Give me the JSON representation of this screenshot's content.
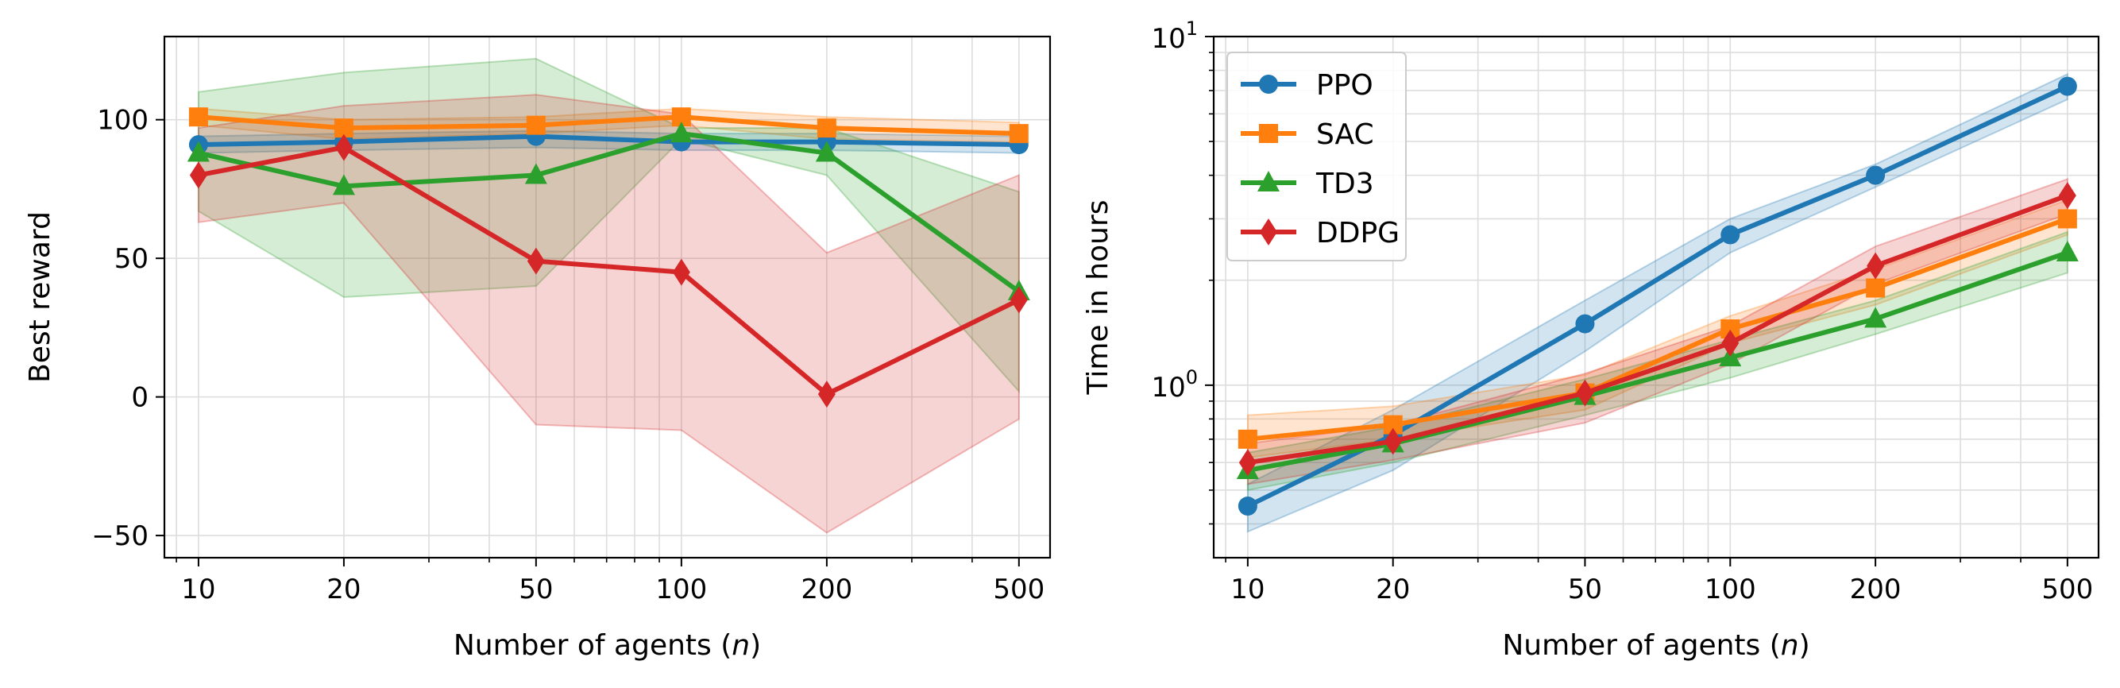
{
  "chart_data": [
    {
      "type": "line",
      "xscale": "log",
      "yscale": "linear",
      "x": [
        10,
        20,
        50,
        100,
        200,
        500
      ],
      "xlim": [
        8.5,
        580
      ],
      "ylim": [
        -58,
        130
      ],
      "xticks": [
        10,
        20,
        50,
        100,
        200,
        500
      ],
      "xtick_labels": [
        "10",
        "20",
        "50",
        "100",
        "200",
        "500"
      ],
      "yticks": [
        -50,
        0,
        50,
        100
      ],
      "ytick_labels": [
        "−50",
        "0",
        "50",
        "100"
      ],
      "xlabel_text": "Number of agents (",
      "xlabel_var": "n",
      "xlabel_close": ")",
      "ylabel": "Best reward",
      "grid": true,
      "series": [
        {
          "name": "PPO",
          "color": "#1f77b4",
          "marker": "circle",
          "values": [
            91,
            92,
            94,
            92,
            92,
            91
          ],
          "lower": [
            88,
            89,
            90,
            89,
            89,
            88
          ],
          "upper": [
            94,
            95,
            96,
            95,
            95,
            94
          ]
        },
        {
          "name": "SAC",
          "color": "#ff7f0e",
          "marker": "square",
          "values": [
            101,
            97,
            98,
            101,
            97,
            95
          ],
          "lower": [
            98,
            93,
            95,
            98,
            93,
            92
          ],
          "upper": [
            104,
            100,
            101,
            104,
            101,
            99
          ]
        },
        {
          "name": "TD3",
          "color": "#2ca02c",
          "marker": "triangle",
          "values": [
            88,
            76,
            80,
            95,
            88,
            38
          ],
          "lower": [
            67,
            36,
            40,
            93,
            80,
            2
          ],
          "upper": [
            110,
            117,
            122,
            97,
            97,
            74
          ]
        },
        {
          "name": "DDPG",
          "color": "#d62728",
          "marker": "diamond",
          "values": [
            80,
            90,
            49,
            45,
            1,
            35
          ],
          "lower": [
            63,
            70,
            -10,
            -12,
            -49,
            -8
          ],
          "upper": [
            97,
            105,
            109,
            102,
            52,
            80
          ]
        }
      ]
    },
    {
      "type": "line",
      "xscale": "log",
      "yscale": "log",
      "x": [
        10,
        20,
        50,
        100,
        200,
        500
      ],
      "xlim": [
        8.5,
        580
      ],
      "ylim": [
        0.32,
        10
      ],
      "xticks": [
        10,
        20,
        50,
        100,
        200,
        500
      ],
      "xtick_labels": [
        "10",
        "20",
        "50",
        "100",
        "200",
        "500"
      ],
      "ytick_values": [
        1,
        10
      ],
      "ytick_base": "10",
      "ytick_exponents": [
        "0",
        "1"
      ],
      "xlabel_text": "Number of agents (",
      "xlabel_var": "n",
      "xlabel_close": ")",
      "ylabel": "Time in hours",
      "grid": true,
      "legend_location": "top-left",
      "series": [
        {
          "name": "PPO",
          "color": "#1f77b4",
          "marker": "circle",
          "values": [
            0.45,
            0.72,
            1.5,
            2.7,
            4.0,
            7.2
          ],
          "lower": [
            0.38,
            0.57,
            1.25,
            2.4,
            3.7,
            6.6
          ],
          "upper": [
            0.52,
            0.85,
            1.75,
            3.0,
            4.3,
            7.8
          ]
        },
        {
          "name": "SAC",
          "color": "#ff7f0e",
          "marker": "square",
          "values": [
            0.7,
            0.77,
            0.95,
            1.45,
            1.9,
            3.0
          ],
          "lower": [
            0.62,
            0.7,
            0.85,
            1.32,
            1.7,
            2.7
          ],
          "upper": [
            0.82,
            0.87,
            1.07,
            1.58,
            2.15,
            3.4
          ]
        },
        {
          "name": "TD3",
          "color": "#2ca02c",
          "marker": "triangle",
          "values": [
            0.57,
            0.68,
            0.93,
            1.2,
            1.55,
            2.4
          ],
          "lower": [
            0.5,
            0.6,
            0.82,
            1.05,
            1.4,
            2.1
          ],
          "upper": [
            0.64,
            0.76,
            1.04,
            1.35,
            1.75,
            2.75
          ]
        },
        {
          "name": "DDPG",
          "color": "#d62728",
          "marker": "diamond",
          "values": [
            0.6,
            0.69,
            0.95,
            1.32,
            2.2,
            3.5
          ],
          "lower": [
            0.52,
            0.61,
            0.78,
            1.15,
            1.95,
            3.1
          ],
          "upper": [
            0.68,
            0.77,
            1.08,
            1.48,
            2.5,
            3.9
          ]
        }
      ]
    }
  ]
}
